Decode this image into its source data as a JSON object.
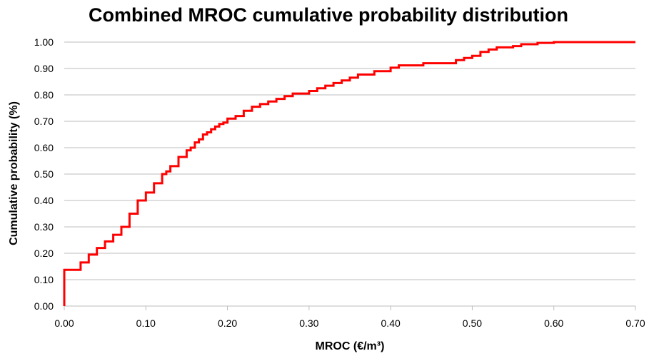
{
  "chart_data": {
    "type": "line",
    "title": "Combined MROC cumulative probability distribution",
    "xlabel": "MROC (€/m³)",
    "ylabel": "Cumulative probability (%)",
    "xlim": [
      0,
      0.7
    ],
    "ylim": [
      0,
      1
    ],
    "x_ticks": [
      "0.00",
      "0.10",
      "0.20",
      "0.30",
      "0.40",
      "0.50",
      "0.60",
      "0.70"
    ],
    "y_ticks": [
      "0.00",
      "0.10",
      "0.20",
      "0.30",
      "0.40",
      "0.50",
      "0.60",
      "0.70",
      "0.80",
      "0.90",
      "1.00"
    ],
    "grid": "horizontal",
    "step": true,
    "colors": {
      "series": "#ff0000",
      "grid": "#bdbdbd"
    },
    "series": [
      {
        "x": [
          0.0,
          0.0,
          0.02,
          0.03,
          0.04,
          0.05,
          0.06,
          0.07,
          0.08,
          0.09,
          0.1,
          0.11,
          0.12,
          0.125,
          0.13,
          0.14,
          0.15,
          0.155,
          0.16,
          0.165,
          0.17,
          0.175,
          0.18,
          0.185,
          0.19,
          0.195,
          0.2,
          0.21,
          0.22,
          0.23,
          0.24,
          0.25,
          0.26,
          0.27,
          0.28,
          0.3,
          0.31,
          0.32,
          0.33,
          0.34,
          0.35,
          0.36,
          0.38,
          0.4,
          0.41,
          0.44,
          0.48,
          0.49,
          0.5,
          0.51,
          0.52,
          0.53,
          0.55,
          0.56,
          0.58,
          0.6,
          0.7
        ],
        "y": [
          0.0,
          0.137,
          0.165,
          0.195,
          0.22,
          0.245,
          0.27,
          0.3,
          0.35,
          0.4,
          0.43,
          0.465,
          0.5,
          0.51,
          0.53,
          0.565,
          0.59,
          0.6,
          0.62,
          0.632,
          0.65,
          0.658,
          0.67,
          0.68,
          0.69,
          0.695,
          0.71,
          0.72,
          0.74,
          0.755,
          0.765,
          0.775,
          0.785,
          0.795,
          0.805,
          0.815,
          0.825,
          0.835,
          0.845,
          0.855,
          0.865,
          0.877,
          0.89,
          0.903,
          0.912,
          0.92,
          0.932,
          0.94,
          0.948,
          0.963,
          0.972,
          0.98,
          0.985,
          0.992,
          0.997,
          1.0,
          1.0
        ]
      }
    ]
  }
}
